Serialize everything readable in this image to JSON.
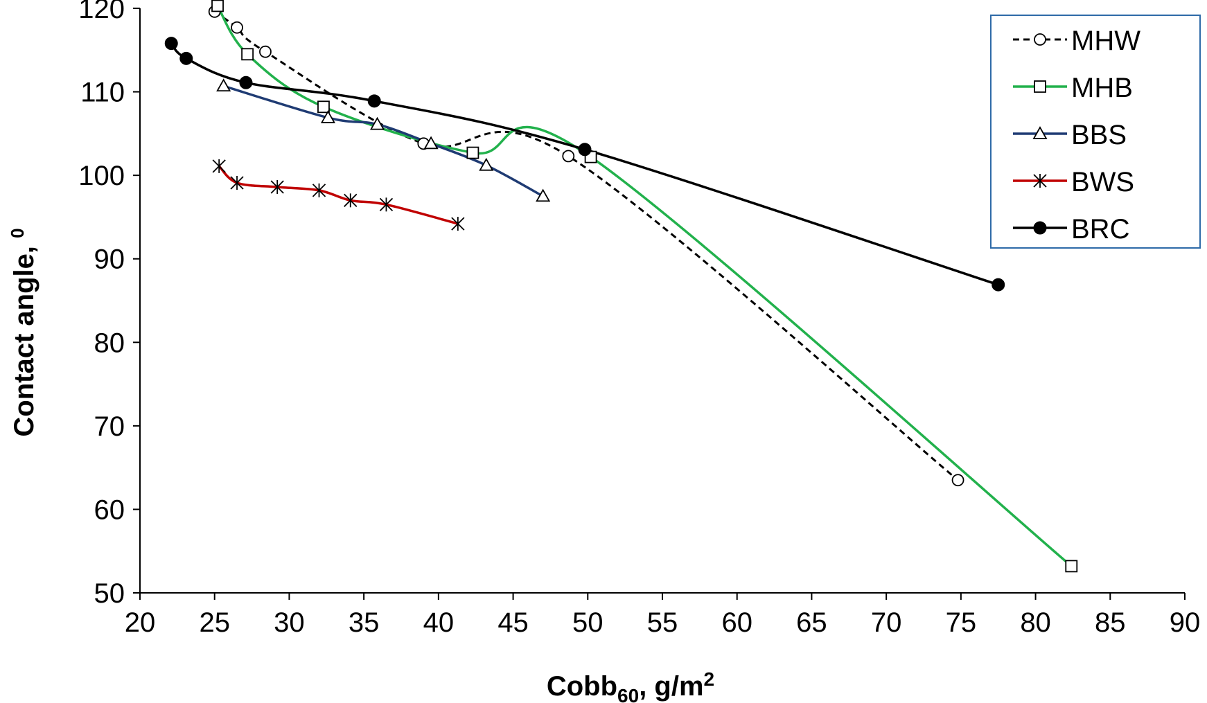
{
  "chart_data": {
    "type": "scatter",
    "xlabel": {
      "main": "Cobb",
      "sub": "60",
      "rest": ", g/m",
      "sup": "2"
    },
    "ylabel": {
      "main": "Contact angle, ",
      "sup": "0"
    },
    "xlim": [
      20,
      90
    ],
    "ylim": [
      50,
      120
    ],
    "x_ticks": [
      "20",
      "25",
      "30",
      "35",
      "40",
      "45",
      "50",
      "55",
      "60",
      "65",
      "70",
      "75",
      "80",
      "85",
      "90"
    ],
    "y_ticks": [
      "50",
      "60",
      "70",
      "80",
      "90",
      "100",
      "110",
      "120"
    ],
    "grid": false,
    "legend_position": "top-right",
    "series": [
      {
        "name": "MHW",
        "color": "#000000",
        "dash": true,
        "marker": "circle-open",
        "points": [
          [
            25.0,
            119.6
          ],
          [
            26.5,
            117.7
          ],
          [
            28.4,
            114.8
          ],
          [
            39.0,
            103.8
          ],
          [
            48.7,
            102.3
          ],
          [
            74.8,
            63.5
          ]
        ]
      },
      {
        "name": "MHB",
        "color": "#22b14c",
        "dash": false,
        "marker": "square-open",
        "points": [
          [
            25.2,
            120.3
          ],
          [
            27.2,
            114.5
          ],
          [
            32.3,
            108.2
          ],
          [
            42.3,
            102.7
          ],
          [
            50.2,
            102.2
          ],
          [
            82.4,
            53.2
          ]
        ]
      },
      {
        "name": "BBS",
        "color": "#1f3b73",
        "dash": false,
        "marker": "triangle-open",
        "points": [
          [
            25.6,
            110.7
          ],
          [
            32.6,
            106.9
          ],
          [
            35.9,
            106.1
          ],
          [
            39.5,
            103.8
          ],
          [
            43.2,
            101.2
          ],
          [
            47.0,
            97.5
          ]
        ]
      },
      {
        "name": "BWS",
        "color": "#c00000",
        "dash": false,
        "marker": "asterisk",
        "points": [
          [
            25.3,
            101.1
          ],
          [
            26.5,
            99.1
          ],
          [
            29.2,
            98.6
          ],
          [
            32.0,
            98.2
          ],
          [
            34.1,
            97.0
          ],
          [
            36.5,
            96.5
          ],
          [
            41.3,
            94.2
          ]
        ]
      },
      {
        "name": "BRC",
        "color": "#000000",
        "dash": false,
        "marker": "circle-filled",
        "points": [
          [
            22.1,
            115.8
          ],
          [
            23.1,
            114.0
          ],
          [
            27.1,
            111.1
          ],
          [
            35.7,
            108.9
          ],
          [
            49.8,
            103.1
          ],
          [
            77.5,
            86.9
          ]
        ]
      }
    ]
  }
}
